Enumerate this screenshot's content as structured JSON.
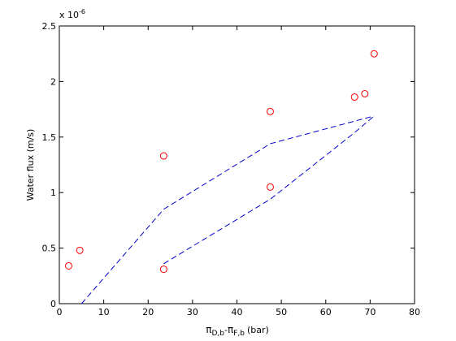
{
  "chart_data": {
    "type": "scatter",
    "title": "",
    "xlabel": {
      "pi": "π",
      "sub1": "D,b",
      "minus": "-",
      "sub2": "F,b",
      "unit": "(bar)"
    },
    "ylabel": "Water flux (m/s)",
    "exponent": {
      "base": "x 10",
      "power": "-6"
    },
    "xlim": [
      0,
      80
    ],
    "ylim": [
      0,
      2.5
    ],
    "xticks": [
      0,
      10,
      20,
      30,
      40,
      50,
      60,
      70,
      80
    ],
    "xtick_labels": [
      "0",
      "10",
      "20",
      "30",
      "40",
      "50",
      "60",
      "70",
      "80"
    ],
    "yticks": [
      0,
      0.5,
      1,
      1.5,
      2,
      2.5
    ],
    "ytick_labels": [
      "0",
      "0.5",
      "1",
      "1.5",
      "2",
      "2.5"
    ],
    "grid": false,
    "series": [
      {
        "kind": "markers",
        "marker": "circle",
        "color": "#ff0000",
        "points": [
          {
            "x": 2.1,
            "y": 0.34
          },
          {
            "x": 4.6,
            "y": 0.48
          },
          {
            "x": 23.5,
            "y": 1.33
          },
          {
            "x": 23.5,
            "y": 0.31
          },
          {
            "x": 47.5,
            "y": 1.73
          },
          {
            "x": 47.5,
            "y": 1.05
          },
          {
            "x": 66.5,
            "y": 1.86
          },
          {
            "x": 68.8,
            "y": 1.89
          },
          {
            "x": 70.9,
            "y": 2.25
          }
        ]
      },
      {
        "kind": "line",
        "style": "dashed",
        "color": "#0000cc",
        "points": [
          {
            "x": 5.0,
            "y": 0.0
          },
          {
            "x": 23.5,
            "y": 0.85
          },
          {
            "x": 47.5,
            "y": 1.44
          },
          {
            "x": 70.9,
            "y": 1.69
          }
        ]
      },
      {
        "kind": "line",
        "style": "dashed",
        "color": "#0000cc",
        "points": [
          {
            "x": 23.5,
            "y": 0.36
          },
          {
            "x": 47.5,
            "y": 0.94
          },
          {
            "x": 66.5,
            "y": 1.54
          },
          {
            "x": 70.9,
            "y": 1.69
          }
        ]
      }
    ]
  }
}
